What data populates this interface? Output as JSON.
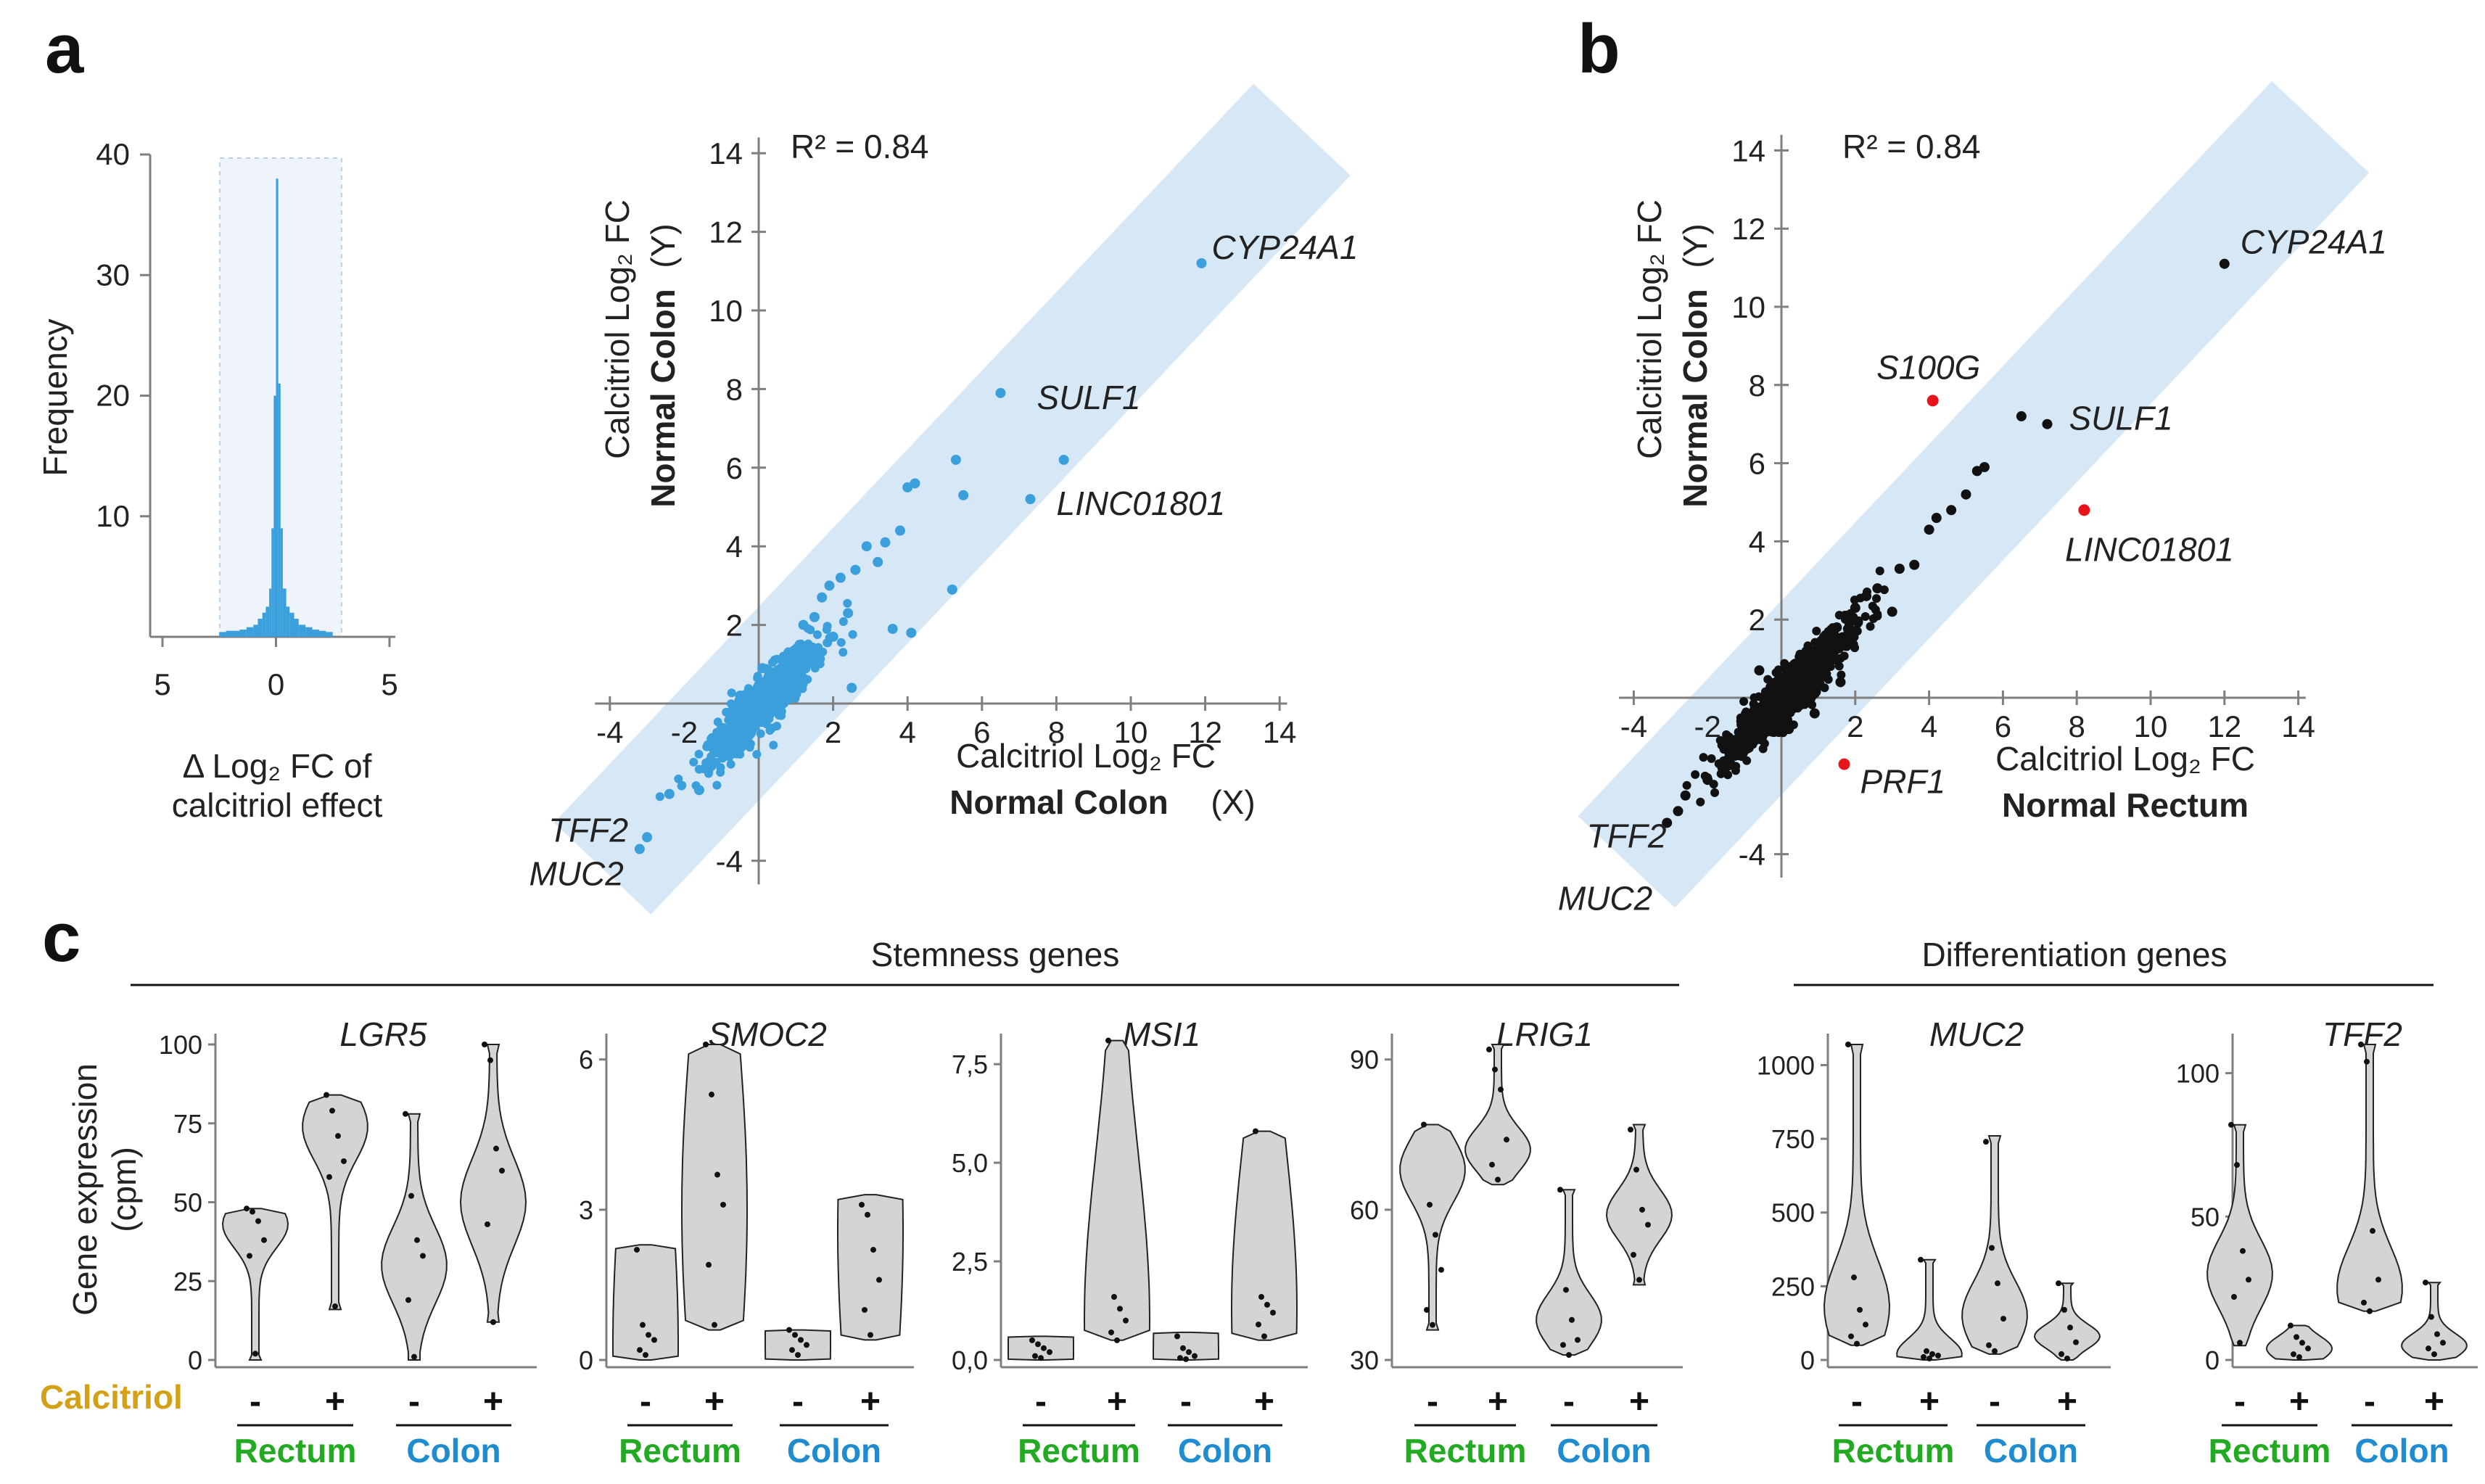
{
  "colors": {
    "blue": "#1e8ccf",
    "point_blue": "#3a9fda",
    "band": "#d6e7f6",
    "black": "#111111",
    "red": "#e8141b",
    "green": "#1a7a1a",
    "group_green": "#22aa22",
    "gold": "#d4a017",
    "violin": "#d4d4d4"
  },
  "panels": {
    "a": "a",
    "b": "b",
    "c": "c"
  },
  "chart_data": [
    {
      "id": "hist",
      "type": "bar",
      "ylabel": "Frequency",
      "xlabel_line1": "Δ Log₂ FC of",
      "xlabel_line2": "calcitriol effect",
      "yticks": [
        "10",
        "20",
        "30",
        "40"
      ],
      "ytick_values": [
        10,
        20,
        30,
        40
      ],
      "xticks": [
        "5",
        "0",
        "5"
      ],
      "xtick_values": [
        -5,
        0,
        5
      ],
      "xlim": [
        -5,
        5
      ],
      "ylim": [
        0,
        40
      ],
      "bins": [
        -2.5,
        -2.2,
        -1.9,
        -1.6,
        -1.3,
        -1.0,
        -0.8,
        -0.6,
        -0.45,
        -0.3,
        -0.2,
        -0.1,
        0,
        0.1,
        0.2,
        0.3,
        0.45,
        0.6,
        0.8,
        1.0,
        1.3,
        1.6,
        1.9,
        2.2
      ],
      "counts": [
        0.4,
        0.5,
        0.5,
        0.6,
        0.8,
        1,
        1.5,
        2,
        2.5,
        4,
        9,
        20,
        38,
        21,
        9,
        4,
        2.5,
        2,
        1.5,
        1,
        0.8,
        0.6,
        0.5,
        0.4
      ]
    },
    {
      "id": "scatterA",
      "type": "scatter",
      "r2": "R² = 0.84",
      "ylabel_line1": "Calcitriol Log₂ FC",
      "ylabel_blue": "Normal Colon",
      "ylabel_tail": "(Y)",
      "xlabel_line1": "Calcitriol Log₂ FC",
      "xlabel_blue": "Normal Colon",
      "xlabel_tail": "(X)",
      "xticks": [
        "-4",
        "2",
        "4",
        "6",
        "8",
        "10",
        "12",
        "14"
      ],
      "xtick_values": [
        -4,
        2,
        4,
        6,
        8,
        10,
        12,
        14
      ],
      "yticks": [
        "-4",
        "2",
        "4",
        "6",
        "8",
        "10",
        "12",
        "14"
      ],
      "ytick_values": [
        -4,
        2,
        4,
        6,
        8,
        10,
        12,
        14
      ],
      "hidden_tick": "-2",
      "xlim": [
        -4,
        14
      ],
      "ylim": [
        -4,
        14
      ],
      "points": [
        [
          11.9,
          11.2
        ],
        [
          6.5,
          7.9
        ],
        [
          7.3,
          5.2
        ],
        [
          8.2,
          6.2
        ],
        [
          5.3,
          6.2
        ],
        [
          4.2,
          5.6
        ],
        [
          4.0,
          5.5
        ],
        [
          5.5,
          5.3
        ],
        [
          3.8,
          4.4
        ],
        [
          3.4,
          4.1
        ],
        [
          2.9,
          4.0
        ],
        [
          3.2,
          3.6
        ],
        [
          2.6,
          3.4
        ],
        [
          2.2,
          3.2
        ],
        [
          1.9,
          3.0
        ],
        [
          1.7,
          2.7
        ],
        [
          2.4,
          2.3
        ],
        [
          1.5,
          2.2
        ],
        [
          1.2,
          2.0
        ],
        [
          2.0,
          1.7
        ],
        [
          0.8,
          1.3
        ],
        [
          1.4,
          1.1
        ],
        [
          -1.3,
          -1.6
        ],
        [
          -1.6,
          -2.2
        ],
        [
          -2.4,
          -2.3
        ],
        [
          -3.0,
          -3.4
        ],
        [
          -3.2,
          -3.7
        ],
        [
          4.1,
          1.8
        ],
        [
          5.2,
          2.9
        ],
        [
          3.6,
          1.9
        ],
        [
          2.5,
          0.4
        ],
        [
          -0.9,
          -0.7
        ],
        [
          0.3,
          0.6
        ],
        [
          -0.5,
          0.2
        ],
        [
          1.0,
          0.5
        ],
        [
          0.6,
          -0.2
        ],
        [
          -0.2,
          -0.5
        ],
        [
          0.1,
          0.9
        ]
      ],
      "labels": [
        {
          "gene": "CYP24A1",
          "x": 11.9,
          "y": 11.2
        },
        {
          "gene": "SULF1",
          "x": 6.5,
          "y": 7.9
        },
        {
          "gene": "LINC01801",
          "x": 7.3,
          "y": 5.2
        },
        {
          "gene": "TFF2",
          "x": -3.0,
          "y": -3.4
        },
        {
          "gene": "MUC2",
          "x": -3.2,
          "y": -3.7
        }
      ]
    },
    {
      "id": "scatterB",
      "type": "scatter",
      "r2": "R² = 0.84",
      "ylabel_line1": "Calcitriol Log₂ FC",
      "ylabel_blue": "Normal Colon",
      "ylabel_tail": "(Y)",
      "xlabel_line1": "Calcitriol Log₂ FC",
      "xlabel_green": "Normal Rectum",
      "xticks": [
        "-4",
        "2",
        "4",
        "6",
        "8",
        "10",
        "12",
        "14"
      ],
      "xtick_values": [
        -4,
        2,
        4,
        6,
        8,
        10,
        12,
        14
      ],
      "yticks": [
        "-4",
        "2",
        "4",
        "6",
        "8",
        "10",
        "12",
        "14"
      ],
      "ytick_values": [
        -4,
        2,
        4,
        6,
        8,
        10,
        12,
        14
      ],
      "hidden_tick": "-2",
      "xlim": [
        -4,
        14
      ],
      "ylim": [
        -4,
        14
      ],
      "points": [
        [
          12.0,
          11.1
        ],
        [
          6.5,
          7.2
        ],
        [
          7.2,
          7.0
        ],
        [
          5.5,
          5.9
        ],
        [
          5.3,
          5.8
        ],
        [
          4.6,
          4.8
        ],
        [
          4.2,
          4.6
        ],
        [
          4.0,
          4.3
        ],
        [
          3.6,
          3.4
        ],
        [
          3.2,
          3.3
        ],
        [
          2.6,
          2.8
        ],
        [
          2.3,
          2.6
        ],
        [
          2.0,
          2.3
        ],
        [
          1.8,
          2.1
        ],
        [
          1.5,
          1.8
        ],
        [
          1.2,
          1.6
        ],
        [
          1.0,
          1.3
        ],
        [
          0.6,
          1.0
        ],
        [
          -1.4,
          -1.5
        ],
        [
          -2.0,
          -2.1
        ],
        [
          -2.6,
          -2.5
        ],
        [
          -2.8,
          -2.9
        ],
        [
          -3.1,
          -3.2
        ],
        [
          1.6,
          0.4
        ],
        [
          0.9,
          -0.4
        ],
        [
          -0.6,
          0.7
        ],
        [
          0.2,
          -0.8
        ],
        [
          -0.4,
          -0.3
        ],
        [
          0.4,
          0.3
        ],
        [
          3.0,
          2.2
        ],
        [
          -1.0,
          -0.9
        ],
        [
          5.0,
          5.2
        ]
      ],
      "red_points": [
        {
          "gene": "S100G",
          "x": 4.1,
          "y": 7.6
        },
        {
          "gene": "LINC01801",
          "x": 8.2,
          "y": 4.8
        },
        {
          "gene": "PRF1",
          "x": 1.7,
          "y": -1.7
        }
      ],
      "labels": [
        {
          "gene": "CYP24A1",
          "x": 12.0,
          "y": 11.1
        },
        {
          "gene": "SULF1",
          "x": 7.2,
          "y": 7.0
        },
        {
          "gene": "TFF2",
          "x": -2.8,
          "y": -2.9
        },
        {
          "gene": "MUC2",
          "x": -3.1,
          "y": -3.2
        }
      ]
    },
    {
      "id": "violins",
      "type": "violin",
      "section_stemness": "Stemness genes",
      "section_differentiation": "Differentiation genes",
      "ylabel_line1": "Gene expression",
      "ylabel_line2": "(cpm)",
      "row_label": "Calcitriol",
      "conditions": [
        "-",
        "+",
        "-",
        "+"
      ],
      "groups": [
        "Rectum",
        "Colon"
      ],
      "genes": [
        {
          "name": "LGR5",
          "ylim": [
            0,
            100
          ],
          "yticks": [
            "0",
            "25",
            "50",
            "75",
            "100"
          ],
          "ytick_values": [
            0,
            25,
            50,
            75,
            100
          ],
          "violins": [
            {
              "min": 0,
              "max": 48,
              "peak": 43,
              "pts": [
                48,
                47,
                44,
                38,
                33,
                2
              ]
            },
            {
              "min": 16,
              "max": 84,
              "peak": 74,
              "pts": [
                84,
                79,
                71,
                63,
                58,
                17
              ]
            },
            {
              "min": 0,
              "max": 78,
              "peak": 30,
              "pts": [
                78,
                52,
                38,
                33,
                19,
                1
              ]
            },
            {
              "min": 12,
              "max": 100,
              "peak": 50,
              "pts": [
                100,
                95,
                67,
                60,
                43,
                12
              ]
            }
          ]
        },
        {
          "name": "SMOC2",
          "ylim": [
            0,
            6.3
          ],
          "yticks": [
            "0",
            "3",
            "6"
          ],
          "ytick_values": [
            0,
            3,
            6
          ],
          "violins": [
            {
              "min": 0,
              "max": 2.3,
              "peak": 0.3,
              "pts": [
                2.2,
                0.7,
                0.5,
                0.4,
                0.2,
                0.1
              ]
            },
            {
              "min": 0.6,
              "max": 6.3,
              "peak": 3.0,
              "pts": [
                6.3,
                5.3,
                3.7,
                3.1,
                1.9,
                0.7
              ]
            },
            {
              "min": 0,
              "max": 0.6,
              "peak": 0.4,
              "pts": [
                0.6,
                0.5,
                0.4,
                0.3,
                0.2,
                0.1
              ]
            },
            {
              "min": 0.4,
              "max": 3.3,
              "peak": 2.6,
              "pts": [
                3.1,
                2.9,
                2.2,
                1.6,
                1.0,
                0.5
              ]
            }
          ]
        },
        {
          "name": "MSI1",
          "ylim": [
            0,
            8
          ],
          "yticks": [
            "0,0",
            "2,5",
            "5,0",
            "7,5"
          ],
          "ytick_values": [
            0,
            2.5,
            5,
            7.5
          ],
          "violins": [
            {
              "min": 0,
              "max": 0.6,
              "peak": 0.3,
              "pts": [
                0.5,
                0.4,
                0.3,
                0.2,
                0.1,
                0.05
              ]
            },
            {
              "min": 0.5,
              "max": 8.1,
              "peak": 1.0,
              "pts": [
                8.1,
                1.6,
                1.3,
                1.0,
                0.7,
                0.5
              ]
            },
            {
              "min": 0,
              "max": 0.7,
              "peak": 0.1,
              "pts": [
                0.6,
                0.3,
                0.2,
                0.1,
                0.05,
                0.02
              ]
            },
            {
              "min": 0.5,
              "max": 5.8,
              "peak": 1.3,
              "pts": [
                5.8,
                1.6,
                1.4,
                1.2,
                0.9,
                0.6
              ]
            }
          ]
        },
        {
          "name": "LRIG1",
          "ylim": [
            30,
            93
          ],
          "yticks": [
            "30",
            "60",
            "90"
          ],
          "ytick_values": [
            30,
            60,
            90
          ],
          "violins": [
            {
              "min": 36,
              "max": 77,
              "peak": 68,
              "pts": [
                77,
                61,
                55,
                48,
                40,
                37
              ]
            },
            {
              "min": 65,
              "max": 93,
              "peak": 72,
              "pts": [
                92,
                88,
                84,
                74,
                69,
                66
              ]
            },
            {
              "min": 31,
              "max": 64,
              "peak": 38,
              "pts": [
                64,
                44,
                38,
                34,
                33,
                31
              ]
            },
            {
              "min": 45,
              "max": 77,
              "peak": 59,
              "pts": [
                76,
                68,
                60,
                57,
                51,
                46
              ]
            }
          ]
        },
        {
          "name": "MUC2",
          "ylim": [
            0,
            1070
          ],
          "yticks": [
            "0",
            "250",
            "500",
            "750",
            "1000"
          ],
          "ytick_values": [
            0,
            250,
            500,
            750,
            1000
          ],
          "violins": [
            {
              "min": 50,
              "max": 1070,
              "peak": 180,
              "pts": [
                1070,
                280,
                170,
                120,
                80,
                55
              ]
            },
            {
              "min": 0,
              "max": 340,
              "peak": 20,
              "pts": [
                340,
                30,
                20,
                15,
                10,
                5
              ]
            },
            {
              "min": 20,
              "max": 760,
              "peak": 150,
              "pts": [
                740,
                380,
                260,
                140,
                50,
                30
              ]
            },
            {
              "min": 0,
              "max": 260,
              "peak": 80,
              "pts": [
                260,
                170,
                110,
                60,
                20,
                5
              ]
            }
          ]
        },
        {
          "name": "TFF2",
          "ylim": [
            0,
            110
          ],
          "yticks": [
            "0",
            "50",
            "100"
          ],
          "ytick_values": [
            0,
            50,
            100
          ],
          "violins": [
            {
              "min": 5,
              "max": 82,
              "peak": 30,
              "pts": [
                82,
                68,
                38,
                28,
                22,
                6
              ]
            },
            {
              "min": 0,
              "max": 12,
              "peak": 4,
              "pts": [
                12,
                8,
                6,
                4,
                2,
                1
              ]
            },
            {
              "min": 17,
              "max": 110,
              "peak": 25,
              "pts": [
                110,
                104,
                45,
                28,
                20,
                17
              ]
            },
            {
              "min": 0,
              "max": 27,
              "peak": 5,
              "pts": [
                27,
                15,
                9,
                6,
                4,
                2
              ]
            }
          ]
        }
      ]
    }
  ]
}
